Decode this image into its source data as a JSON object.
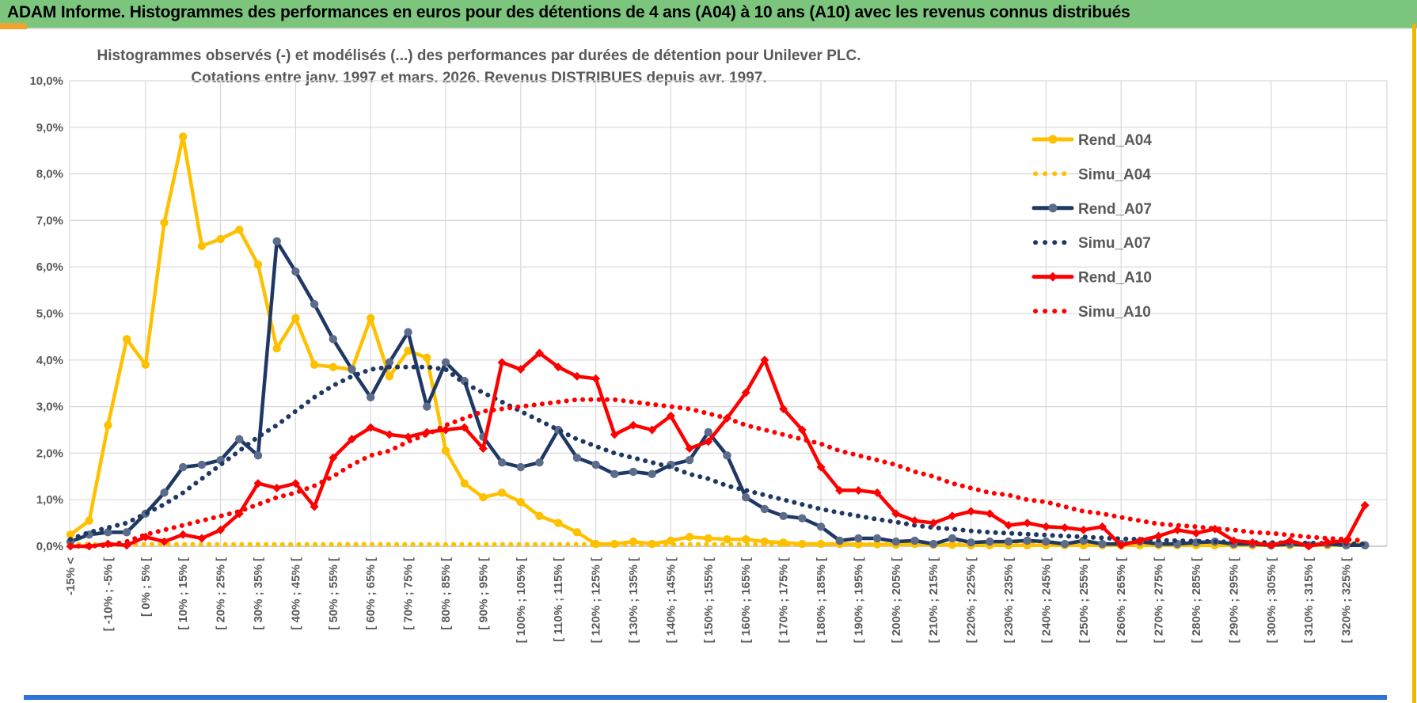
{
  "window": {
    "title": "ADAM Informe. Histogrammes des performances en euros pour des détentions de 4 ans (A04) à 10 ans (A10) avec les revenus connus distribués"
  },
  "colors": {
    "header_green": "#7CC57D",
    "accent_gold": "#EDB600",
    "accent_blue_strip": "#2E74D9",
    "text_gray": "#595959",
    "grid_gray": "#D9D9D9",
    "axis_gray": "#BFBFBF",
    "series_yellow": "#FFC000",
    "series_navy": "#1F3864",
    "series_red": "#FF0000",
    "navy_marker_gray": "#5C6C8A"
  },
  "chart_data": {
    "type": "line",
    "title_line1": "Histogrammes observés (-) et modélisés (...) des performances par durées de détention pour Unilever PLC.",
    "title_line2": "Cotations entre janv. 1997 et mars. 2026. Revenus DISTRIBUES depuis avr. 1997.",
    "grid": true,
    "legend_position": "right",
    "ylim": [
      0,
      10
    ],
    "y_ticks": [
      "10,0%",
      "9,0%",
      "8,0%",
      "7,0%",
      "6,0%",
      "5,0%",
      "4,0%",
      "3,0%",
      "2,0%",
      "1,0%",
      "0,0%"
    ],
    "x_axis": {
      "bin_width_pct": 5,
      "n_points": 70,
      "labels_every_n_bins": 2,
      "tick_labels": [
        "-15% <",
        "[ -10% ; -5% [",
        "[ 0% ; 5% [",
        "[ 10% ; 15% [",
        "[ 20% ; 25% [",
        "[ 30% ; 35% [",
        "[ 40% ; 45% [",
        "[ 50% ; 55% [",
        "[ 60% ; 65% [",
        "[ 70% ; 75% [",
        "[ 80% ; 85% [",
        "[ 90% ; 95% [",
        "[ 100% ; 105% [",
        "[ 110% ; 115% [",
        "[ 120% ; 125% [",
        "[ 130% ; 135% [",
        "[ 140% ; 145% [",
        "[ 150% ; 155% [",
        "[ 160% ; 165% [",
        "[ 170% ; 175% [",
        "[ 180% ; 185% [",
        "[ 190% ; 195% [",
        "[ 200% ; 205% [",
        "[ 210% ; 215% [",
        "[ 220% ; 225% [",
        "[ 230% ; 235% [",
        "[ 240% ; 245% [",
        "[ 250% ; 255% [",
        "[ 260% ; 265% [",
        "[ 270% ; 275% [",
        "[ 280% ; 285% [",
        "[ 290% ; 295% [",
        "[ 300% ; 305% [",
        "[ 310% ; 315% [",
        "[ 320% ; 325% ["
      ]
    },
    "series": [
      {
        "name": "Rend_A04",
        "color": "#FFC000",
        "style": "solid",
        "marker": "circle",
        "marker_color": "#FFC000",
        "values": [
          0.25,
          0.55,
          2.6,
          4.45,
          3.9,
          6.95,
          8.8,
          6.45,
          6.6,
          6.8,
          6.05,
          4.25,
          4.9,
          3.9,
          3.85,
          3.8,
          4.9,
          3.65,
          4.2,
          4.05,
          2.05,
          1.35,
          1.05,
          1.15,
          0.95,
          0.65,
          0.5,
          0.3,
          0.05,
          0.05,
          0.1,
          0.05,
          0.12,
          0.2,
          0.17,
          0.15,
          0.15,
          0.1,
          0.08,
          0.05,
          0.05,
          0.05,
          0.04,
          0.04,
          0.03,
          0.05,
          0.03,
          0.03,
          0.02,
          0.02,
          0.02,
          0.02,
          0.02,
          0.02,
          0.02,
          0.02,
          0.02,
          0.02,
          0.02,
          0.02,
          0.02,
          0.02,
          0.02,
          0.02,
          0.02,
          0.02,
          0.02,
          0.02,
          0.02,
          0.02
        ]
      },
      {
        "name": "Simu_A04",
        "color": "#FFC000",
        "style": "dotted",
        "marker": "none",
        "values": [
          0.04,
          0.04,
          0.04,
          0.04,
          0.04,
          0.04,
          0.04,
          0.04,
          0.04,
          0.04,
          0.04,
          0.04,
          0.04,
          0.04,
          0.04,
          0.04,
          0.04,
          0.04,
          0.04,
          0.04,
          0.04,
          0.04,
          0.04,
          0.04,
          0.04,
          0.04,
          0.04,
          0.04,
          0.04,
          0.04,
          0.04,
          0.04,
          0.04,
          0.04,
          0.04,
          0.04,
          0.04,
          0.04,
          0.04,
          0.04,
          0.04,
          0.04,
          0.04,
          0.04,
          0.04,
          0.04,
          0.04,
          0.04,
          0.04,
          0.04,
          0.04,
          0.04,
          0.04,
          0.04,
          0.04,
          0.04,
          0.04,
          0.04,
          0.04,
          0.04,
          0.04,
          0.04,
          0.04,
          0.04,
          0.04,
          0.04,
          0.04,
          0.04,
          0.04,
          0.04
        ]
      },
      {
        "name": "Rend_A07",
        "color": "#1F3864",
        "style": "solid",
        "marker": "circle",
        "marker_color": "#5C6C8A",
        "values": [
          0.1,
          0.25,
          0.3,
          0.3,
          0.7,
          1.15,
          1.7,
          1.75,
          1.85,
          2.3,
          1.95,
          6.55,
          5.9,
          5.2,
          4.45,
          3.8,
          3.2,
          3.95,
          4.6,
          3.0,
          3.95,
          3.55,
          2.35,
          1.8,
          1.7,
          1.8,
          2.5,
          1.9,
          1.75,
          1.55,
          1.6,
          1.55,
          1.75,
          1.85,
          2.45,
          1.95,
          1.05,
          0.8,
          0.65,
          0.6,
          0.42,
          0.12,
          0.17,
          0.17,
          0.1,
          0.12,
          0.05,
          0.17,
          0.08,
          0.1,
          0.1,
          0.12,
          0.1,
          0.05,
          0.12,
          0.05,
          0.05,
          0.1,
          0.05,
          0.05,
          0.08,
          0.1,
          0.05,
          0.05,
          0.02,
          0.05,
          0.02,
          0.05,
          0.02,
          0.02
        ]
      },
      {
        "name": "Simu_A07",
        "color": "#1F3864",
        "style": "dotted",
        "marker": "none",
        "values": [
          0.15,
          0.3,
          0.4,
          0.5,
          0.7,
          0.9,
          1.15,
          1.45,
          1.75,
          2.05,
          2.35,
          2.6,
          2.9,
          3.2,
          3.45,
          3.65,
          3.8,
          3.85,
          3.85,
          3.85,
          3.8,
          3.5,
          3.3,
          3.1,
          2.9,
          2.7,
          2.5,
          2.3,
          2.15,
          2.0,
          1.9,
          1.8,
          1.7,
          1.55,
          1.45,
          1.3,
          1.2,
          1.1,
          1.0,
          0.9,
          0.8,
          0.72,
          0.65,
          0.58,
          0.52,
          0.45,
          0.4,
          0.37,
          0.33,
          0.3,
          0.28,
          0.26,
          0.24,
          0.22,
          0.2,
          0.18,
          0.16,
          0.15,
          0.13,
          0.12,
          0.11,
          0.1,
          0.09,
          0.08,
          0.08,
          0.07,
          0.07,
          0.06,
          0.06,
          0.05
        ]
      },
      {
        "name": "Rend_A10",
        "color": "#FF0000",
        "style": "solid",
        "marker": "diamond",
        "marker_color": "#FF0000",
        "values": [
          0.0,
          0.0,
          0.05,
          0.02,
          0.2,
          0.1,
          0.25,
          0.17,
          0.35,
          0.7,
          1.35,
          1.25,
          1.35,
          0.85,
          1.9,
          2.3,
          2.55,
          2.4,
          2.35,
          2.45,
          2.5,
          2.55,
          2.1,
          3.95,
          3.8,
          4.15,
          3.85,
          3.65,
          3.6,
          2.4,
          2.6,
          2.5,
          2.8,
          2.1,
          2.25,
          2.75,
          3.3,
          4.0,
          2.95,
          2.5,
          1.7,
          1.2,
          1.2,
          1.15,
          0.7,
          0.55,
          0.5,
          0.65,
          0.75,
          0.7,
          0.45,
          0.5,
          0.42,
          0.4,
          0.35,
          0.42,
          0.02,
          0.12,
          0.22,
          0.35,
          0.28,
          0.37,
          0.12,
          0.08,
          0.02,
          0.12,
          0.0,
          0.08,
          0.12,
          0.88
        ]
      },
      {
        "name": "Simu_A10",
        "color": "#FF0000",
        "style": "dotted",
        "marker": "none",
        "values": [
          0.0,
          0.0,
          0.02,
          0.1,
          0.25,
          0.35,
          0.45,
          0.55,
          0.65,
          0.75,
          0.9,
          1.05,
          1.15,
          1.3,
          1.5,
          1.75,
          1.95,
          2.05,
          2.25,
          2.4,
          2.6,
          2.75,
          2.9,
          2.95,
          3.0,
          3.05,
          3.1,
          3.15,
          3.15,
          3.15,
          3.1,
          3.05,
          3.0,
          2.95,
          2.85,
          2.75,
          2.6,
          2.5,
          2.4,
          2.3,
          2.2,
          2.05,
          1.95,
          1.85,
          1.75,
          1.6,
          1.5,
          1.35,
          1.25,
          1.15,
          1.1,
          1.0,
          0.95,
          0.85,
          0.75,
          0.7,
          0.62,
          0.55,
          0.48,
          0.45,
          0.42,
          0.38,
          0.35,
          0.3,
          0.28,
          0.24,
          0.2,
          0.17,
          0.15,
          0.12
        ]
      }
    ]
  }
}
